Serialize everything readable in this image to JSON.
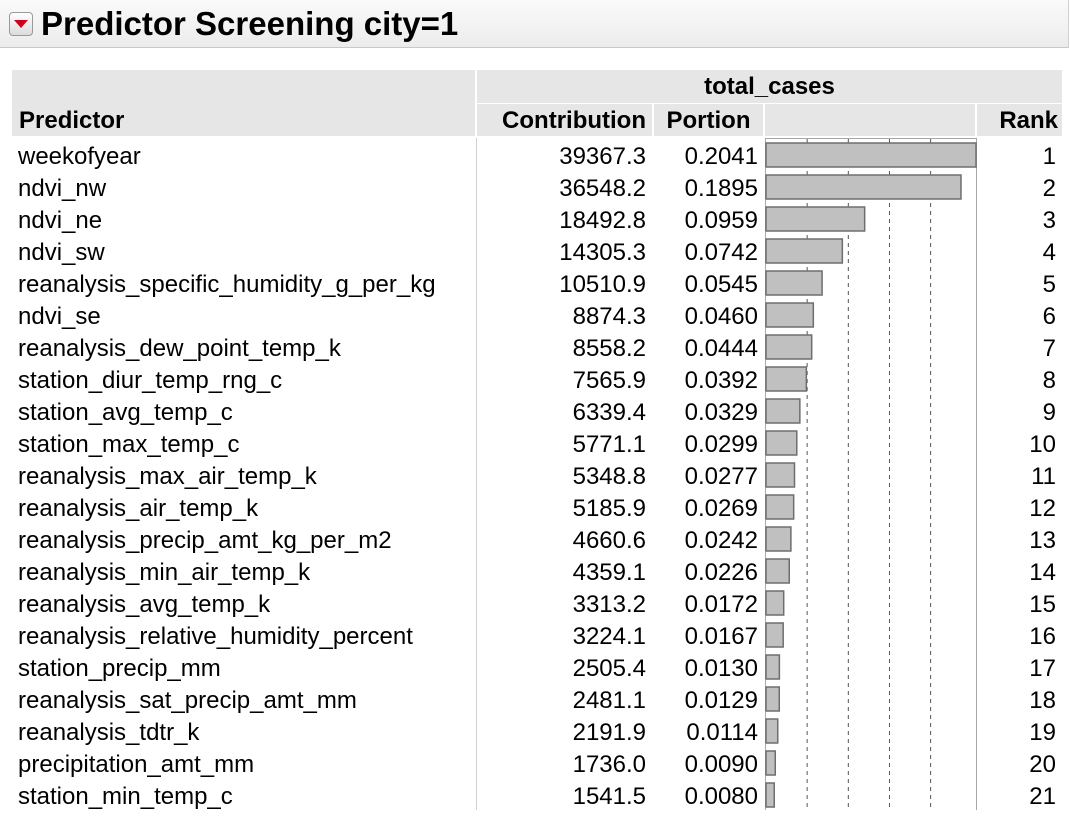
{
  "report": {
    "title": "Predictor Screening city=1"
  },
  "table": {
    "group_header": "total_cases",
    "columns": {
      "predictor": "Predictor",
      "contribution": "Contribution",
      "portion": "Portion",
      "bar": "",
      "rank": "Rank"
    },
    "bar_max_portion": 0.2041,
    "bar_gridlines": [
      0.04,
      0.08,
      0.12,
      0.16
    ],
    "rows": [
      {
        "predictor": "weekofyear",
        "contribution": "39367.3",
        "portion": "0.2041",
        "rank": "1"
      },
      {
        "predictor": "ndvi_nw",
        "contribution": "36548.2",
        "portion": "0.1895",
        "rank": "2"
      },
      {
        "predictor": "ndvi_ne",
        "contribution": "18492.8",
        "portion": "0.0959",
        "rank": "3"
      },
      {
        "predictor": "ndvi_sw",
        "contribution": "14305.3",
        "portion": "0.0742",
        "rank": "4"
      },
      {
        "predictor": "reanalysis_specific_humidity_g_per_kg",
        "contribution": "10510.9",
        "portion": "0.0545",
        "rank": "5"
      },
      {
        "predictor": "ndvi_se",
        "contribution": "8874.3",
        "portion": "0.0460",
        "rank": "6"
      },
      {
        "predictor": "reanalysis_dew_point_temp_k",
        "contribution": "8558.2",
        "portion": "0.0444",
        "rank": "7"
      },
      {
        "predictor": "station_diur_temp_rng_c",
        "contribution": "7565.9",
        "portion": "0.0392",
        "rank": "8"
      },
      {
        "predictor": "station_avg_temp_c",
        "contribution": "6339.4",
        "portion": "0.0329",
        "rank": "9"
      },
      {
        "predictor": "station_max_temp_c",
        "contribution": "5771.1",
        "portion": "0.0299",
        "rank": "10"
      },
      {
        "predictor": "reanalysis_max_air_temp_k",
        "contribution": "5348.8",
        "portion": "0.0277",
        "rank": "11"
      },
      {
        "predictor": "reanalysis_air_temp_k",
        "contribution": "5185.9",
        "portion": "0.0269",
        "rank": "12"
      },
      {
        "predictor": "reanalysis_precip_amt_kg_per_m2",
        "contribution": "4660.6",
        "portion": "0.0242",
        "rank": "13"
      },
      {
        "predictor": "reanalysis_min_air_temp_k",
        "contribution": "4359.1",
        "portion": "0.0226",
        "rank": "14"
      },
      {
        "predictor": "reanalysis_avg_temp_k",
        "contribution": "3313.2",
        "portion": "0.0172",
        "rank": "15"
      },
      {
        "predictor": "reanalysis_relative_humidity_percent",
        "contribution": "3224.1",
        "portion": "0.0167",
        "rank": "16"
      },
      {
        "predictor": "station_precip_mm",
        "contribution": "2505.4",
        "portion": "0.0130",
        "rank": "17"
      },
      {
        "predictor": "reanalysis_sat_precip_amt_mm",
        "contribution": "2481.1",
        "portion": "0.0129",
        "rank": "18"
      },
      {
        "predictor": "reanalysis_tdtr_k",
        "contribution": "2191.9",
        "portion": "0.0114",
        "rank": "19"
      },
      {
        "predictor": "precipitation_amt_mm",
        "contribution": "1736.0",
        "portion": "0.0090",
        "rank": "20"
      },
      {
        "predictor": "station_min_temp_c",
        "contribution": "1541.5",
        "portion": "0.0080",
        "rank": "21"
      }
    ]
  },
  "colors": {
    "bar_fill": "#c0c0c0",
    "bar_stroke": "#6e6e6e",
    "header_bg": "#e6e6e6",
    "disclosure_arrow": "#d0021b"
  },
  "icons": {
    "disclosure": "disclosure-triangle-down-icon"
  }
}
